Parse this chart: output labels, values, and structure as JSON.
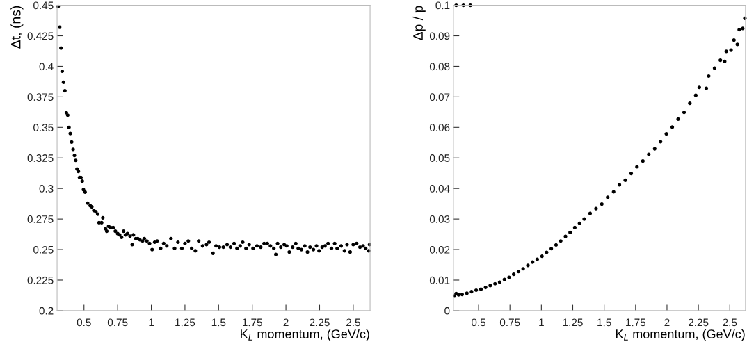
{
  "chart_data": [
    {
      "type": "scatter",
      "xlabel": "K$_{L}$ momentum, (GeV/c)",
      "ylabel": "Δt, (ns)",
      "xlim": [
        0.3,
        2.625
      ],
      "ylim": [
        0.2,
        0.45
      ],
      "xticks": [
        0.5,
        0.75,
        1,
        1.25,
        1.5,
        1.75,
        2,
        2.25,
        2.5
      ],
      "yticks": [
        0.2,
        0.225,
        0.25,
        0.275,
        0.3,
        0.325,
        0.35,
        0.375,
        0.4,
        0.425,
        0.45
      ],
      "grid": false,
      "marker": "circle",
      "series": [
        {
          "color": "#000000",
          "x": [
            0.308,
            0.319,
            0.329,
            0.338,
            0.348,
            0.358,
            0.369,
            0.379,
            0.388,
            0.398,
            0.408,
            0.419,
            0.429,
            0.438,
            0.448,
            0.458,
            0.467,
            0.477,
            0.487,
            0.496,
            0.508,
            0.527,
            0.546,
            0.558,
            0.573,
            0.588,
            0.602,
            0.612,
            0.631,
            0.64,
            0.66,
            0.669,
            0.683,
            0.698,
            0.717,
            0.733,
            0.75,
            0.765,
            0.779,
            0.794,
            0.808,
            0.823,
            0.842,
            0.858,
            0.867,
            0.885,
            0.9,
            0.915,
            0.935,
            0.948,
            0.967,
            0.987,
            1.006,
            1.025,
            1.044,
            1.069,
            1.092,
            1.115,
            1.146,
            1.173,
            1.198,
            1.227,
            1.25,
            1.275,
            1.3,
            1.327,
            1.352,
            1.381,
            1.41,
            1.429,
            1.458,
            1.481,
            1.506,
            1.535,
            1.563,
            1.588,
            1.615,
            1.637,
            1.66,
            1.679,
            1.704,
            1.727,
            1.756,
            1.785,
            1.813,
            1.838,
            1.862,
            1.885,
            1.91,
            1.925,
            1.938,
            1.962,
            1.987,
            2.006,
            2.025,
            2.05,
            2.073,
            2.092,
            2.115,
            2.14,
            2.16,
            2.179,
            2.204,
            2.227,
            2.246,
            2.269,
            2.29,
            2.313,
            2.338,
            2.362,
            2.381,
            2.41,
            2.435,
            2.454,
            2.477,
            2.5,
            2.525,
            2.55,
            2.573,
            2.592,
            2.615,
            2.621
          ],
          "values": [
            0.449,
            0.432,
            0.415,
            0.396,
            0.387,
            0.38,
            0.362,
            0.36,
            0.35,
            0.345,
            0.338,
            0.332,
            0.327,
            0.323,
            0.316,
            0.314,
            0.309,
            0.309,
            0.306,
            0.299,
            0.297,
            0.288,
            0.286,
            0.285,
            0.282,
            0.281,
            0.279,
            0.272,
            0.272,
            0.276,
            0.267,
            0.265,
            0.269,
            0.268,
            0.268,
            0.265,
            0.263,
            0.262,
            0.26,
            0.265,
            0.262,
            0.263,
            0.261,
            0.254,
            0.262,
            0.259,
            0.259,
            0.258,
            0.257,
            0.259,
            0.257,
            0.255,
            0.25,
            0.256,
            0.257,
            0.251,
            0.255,
            0.253,
            0.259,
            0.251,
            0.256,
            0.251,
            0.255,
            0.257,
            0.251,
            0.249,
            0.257,
            0.253,
            0.254,
            0.256,
            0.247,
            0.253,
            0.252,
            0.252,
            0.254,
            0.252,
            0.255,
            0.251,
            0.253,
            0.256,
            0.251,
            0.254,
            0.251,
            0.253,
            0.252,
            0.255,
            0.255,
            0.253,
            0.251,
            0.246,
            0.255,
            0.252,
            0.254,
            0.253,
            0.248,
            0.252,
            0.255,
            0.251,
            0.25,
            0.253,
            0.248,
            0.252,
            0.25,
            0.253,
            0.249,
            0.252,
            0.253,
            0.255,
            0.251,
            0.255,
            0.251,
            0.253,
            0.249,
            0.254,
            0.248,
            0.254,
            0.255,
            0.252,
            0.253,
            0.251,
            0.249,
            0.254
          ]
        }
      ]
    },
    {
      "type": "scatter",
      "xlabel": "K$_{L}$ momentum, (GeV/c)",
      "ylabel": "Δp / p",
      "xlim": [
        0.3,
        2.625
      ],
      "ylim": [
        0,
        0.1
      ],
      "xticks": [
        0.5,
        0.75,
        1,
        1.25,
        1.5,
        1.75,
        2,
        2.25,
        2.5
      ],
      "yticks": [
        0,
        0.01,
        0.02,
        0.03,
        0.04,
        0.05,
        0.06,
        0.07,
        0.08,
        0.09,
        0.1
      ],
      "grid": false,
      "marker": "circle",
      "series": [
        {
          "color": "#000000",
          "x": [
            0.309,
            0.322,
            0.341,
            0.369,
            0.407,
            0.444,
            0.481,
            0.519,
            0.556,
            0.593,
            0.631,
            0.668,
            0.706,
            0.743,
            0.78,
            0.818,
            0.855,
            0.893,
            0.93,
            0.967,
            1.005,
            1.042,
            1.079,
            1.117,
            1.154,
            1.192,
            1.229,
            1.266,
            1.304,
            1.341,
            1.388,
            1.435,
            1.481,
            1.528,
            1.575,
            1.621,
            1.668,
            1.715,
            1.761,
            1.808,
            1.855,
            1.902,
            1.949,
            1.995,
            2.042,
            2.089,
            2.136,
            2.182,
            2.229,
            2.257,
            2.313,
            2.332,
            2.379,
            2.425,
            2.459,
            2.472,
            2.51,
            2.533,
            2.56,
            2.575,
            2.603,
            2.62,
            0.322,
            0.379,
            0.435
          ],
          "values": [
            0.0048,
            0.0056,
            0.0052,
            0.0053,
            0.0057,
            0.0062,
            0.0067,
            0.007,
            0.0076,
            0.0082,
            0.0088,
            0.0093,
            0.0102,
            0.0109,
            0.0119,
            0.0128,
            0.0137,
            0.0148,
            0.0159,
            0.0168,
            0.0178,
            0.0191,
            0.0203,
            0.0215,
            0.0228,
            0.0243,
            0.0256,
            0.0272,
            0.0286,
            0.03,
            0.0318,
            0.0334,
            0.0349,
            0.0371,
            0.0389,
            0.0412,
            0.0427,
            0.0449,
            0.0471,
            0.049,
            0.0512,
            0.053,
            0.0553,
            0.0579,
            0.0601,
            0.0627,
            0.0649,
            0.0679,
            0.0705,
            0.0731,
            0.0728,
            0.0768,
            0.0794,
            0.082,
            0.0816,
            0.0849,
            0.0853,
            0.0886,
            0.0872,
            0.092,
            0.0924,
            0.0957,
            0.1,
            0.1,
            0.1
          ]
        }
      ]
    }
  ]
}
